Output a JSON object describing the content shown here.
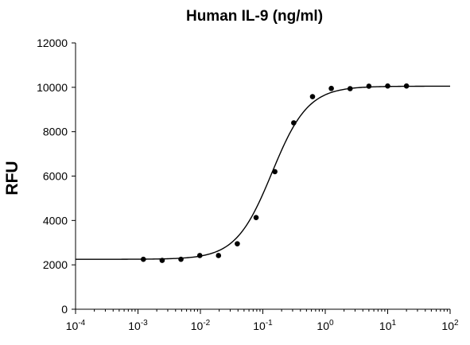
{
  "chart_data": {
    "type": "scatter",
    "title": "Human IL-9 (ng/ml)",
    "xlabel": "",
    "ylabel": "RFU",
    "x_scale": "log",
    "xlim": [
      0.0001,
      100
    ],
    "ylim": [
      0,
      12000
    ],
    "x_ticks": [
      {
        "base": "10",
        "exp": "-4",
        "value": 0.0001
      },
      {
        "base": "10",
        "exp": "-3",
        "value": 0.001
      },
      {
        "base": "10",
        "exp": "-2",
        "value": 0.01
      },
      {
        "base": "10",
        "exp": "-1",
        "value": 0.1
      },
      {
        "base": "10",
        "exp": "0",
        "value": 1
      },
      {
        "base": "10",
        "exp": "1",
        "value": 10
      },
      {
        "base": "10",
        "exp": "2",
        "value": 100
      }
    ],
    "y_ticks": [
      "0",
      "2000",
      "4000",
      "6000",
      "8000",
      "10000",
      "12000"
    ],
    "grid": false,
    "legend": "none",
    "points": [
      {
        "x": 0.00122,
        "y": 2250
      },
      {
        "x": 0.00244,
        "y": 2200
      },
      {
        "x": 0.00488,
        "y": 2250
      },
      {
        "x": 0.00977,
        "y": 2420
      },
      {
        "x": 0.0195,
        "y": 2420
      },
      {
        "x": 0.039,
        "y": 2950
      },
      {
        "x": 0.078,
        "y": 4130
      },
      {
        "x": 0.156,
        "y": 6200
      },
      {
        "x": 0.3125,
        "y": 8400
      },
      {
        "x": 0.625,
        "y": 9580
      },
      {
        "x": 1.25,
        "y": 9950
      },
      {
        "x": 2.5,
        "y": 9940
      },
      {
        "x": 5,
        "y": 10050
      },
      {
        "x": 10,
        "y": 10060
      },
      {
        "x": 20,
        "y": 10060
      }
    ],
    "fit_curve": {
      "model": "4PL",
      "bottom": 2250,
      "top": 10050,
      "ec50": 0.14,
      "hill": 1.5
    },
    "colors": {
      "points": "#000000",
      "curve": "#000000",
      "axes": "#000000"
    }
  }
}
